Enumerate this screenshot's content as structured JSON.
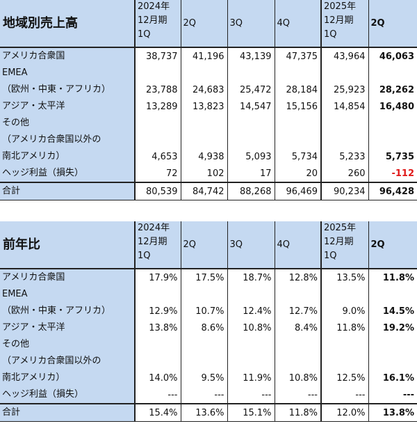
{
  "sales": {
    "title": "地域別売上高",
    "headers": [
      {
        "lines": [
          "2024年",
          "12月期",
          "1Q"
        ]
      },
      {
        "lines": [
          "2Q"
        ]
      },
      {
        "lines": [
          "3Q"
        ]
      },
      {
        "lines": [
          "4Q"
        ]
      },
      {
        "lines": [
          "2025年",
          "12月期",
          "1Q"
        ]
      },
      {
        "lines": [
          "2Q"
        ]
      }
    ],
    "rows": [
      {
        "label": [
          "アメリカ合衆国"
        ],
        "values": [
          "38,737",
          "41,196",
          "43,139",
          "47,375",
          "43,964",
          "46,063"
        ]
      },
      {
        "label": [
          "EMEA",
          "（欧州・中東・アフリカ）"
        ],
        "values": [
          "23,788",
          "24,683",
          "25,472",
          "28,184",
          "25,923",
          "28,262"
        ]
      },
      {
        "label": [
          "アジア・太平洋"
        ],
        "values": [
          "13,289",
          "13,823",
          "14,547",
          "15,156",
          "14,854",
          "16,480"
        ]
      },
      {
        "label": [
          "その他",
          "（アメリカ合衆国以外の",
          "南北アメリカ）"
        ],
        "values": [
          "4,653",
          "4,938",
          "5,093",
          "5,734",
          "5,233",
          "5,735"
        ]
      },
      {
        "label": [
          "ヘッジ利益（損失）"
        ],
        "values": [
          "72",
          "102",
          "17",
          "20",
          "260",
          "-112"
        ]
      },
      {
        "label": [
          "合計"
        ],
        "values": [
          "80,539",
          "84,742",
          "88,268",
          "96,469",
          "90,234",
          "96,428"
        ]
      }
    ],
    "negative_color": "#e01818"
  },
  "yoy": {
    "title": "前年比",
    "headers": [
      {
        "lines": [
          "2024年",
          "12月期",
          "1Q"
        ]
      },
      {
        "lines": [
          "2Q"
        ]
      },
      {
        "lines": [
          "3Q"
        ]
      },
      {
        "lines": [
          "4Q"
        ]
      },
      {
        "lines": [
          "2025年",
          "12月期",
          "1Q"
        ]
      },
      {
        "lines": [
          "2Q"
        ]
      }
    ],
    "rows": [
      {
        "label": [
          "アメリカ合衆国"
        ],
        "values": [
          "17.9%",
          "17.5%",
          "18.7%",
          "12.8%",
          "13.5%",
          "11.8%"
        ]
      },
      {
        "label": [
          "EMEA",
          "（欧州・中東・アフリカ）"
        ],
        "values": [
          "12.9%",
          "10.7%",
          "12.4%",
          "12.7%",
          "9.0%",
          "14.5%"
        ]
      },
      {
        "label": [
          "アジア・太平洋"
        ],
        "values": [
          "13.8%",
          "8.6%",
          "10.8%",
          "8.4%",
          "11.8%",
          "19.2%"
        ]
      },
      {
        "label": [
          "その他",
          "（アメリカ合衆国以外の",
          "南北アメリカ）"
        ],
        "values": [
          "14.0%",
          "9.5%",
          "11.9%",
          "10.8%",
          "12.5%",
          "16.1%"
        ]
      },
      {
        "label": [
          "ヘッジ利益（損失）"
        ],
        "values": [
          "---",
          "---",
          "---",
          "---",
          "---",
          "---"
        ]
      },
      {
        "label": [
          "合計"
        ],
        "values": [
          "15.4%",
          "13.6%",
          "15.1%",
          "11.8%",
          "12.0%",
          "13.8%"
        ]
      }
    ]
  },
  "colors": {
    "header_bg": "#c5d9f1",
    "border": "#222222"
  }
}
